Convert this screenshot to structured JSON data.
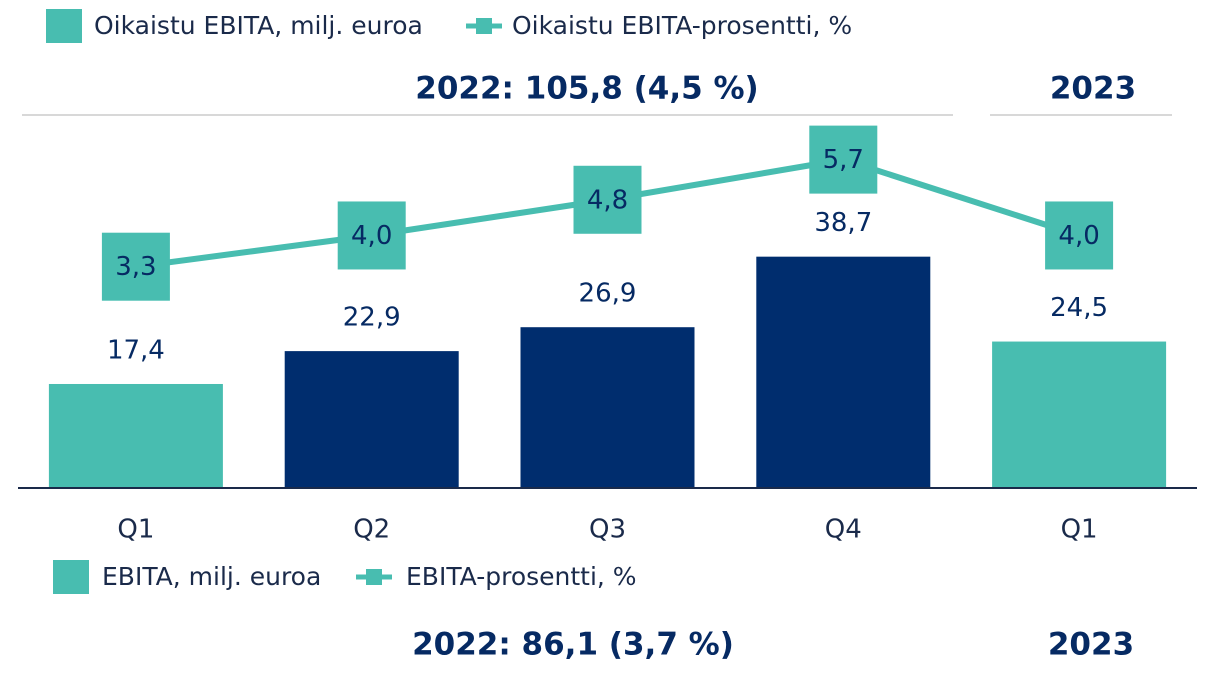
{
  "chart_data": {
    "type": "bar",
    "categories": [
      "Q1",
      "Q2",
      "Q3",
      "Q4",
      "Q1"
    ],
    "series": [
      {
        "name": "Oikaistu EBITA, milj. euroa",
        "type": "bar",
        "color": "#48bdb0",
        "colors": [
          "#48bdb0",
          "#002d6e",
          "#002d6e",
          "#002d6e",
          "#48bdb0"
        ],
        "values": [
          17.4,
          22.9,
          26.9,
          38.7,
          24.5
        ],
        "value_labels": [
          "17,4",
          "22,9",
          "26,9",
          "38,7",
          "24,5"
        ]
      },
      {
        "name": "Oikaistu EBITA-prosentti, %",
        "type": "line",
        "axis": "y2",
        "color": "#48bdb0",
        "values": [
          3.3,
          4.0,
          4.8,
          5.7,
          4.0
        ],
        "value_labels": [
          "3,3",
          "4,0",
          "4,8",
          "5,7",
          "4,0"
        ]
      }
    ],
    "period_labels": [
      "2022: 105,8 (4,5 %)",
      "2023"
    ],
    "secondary_legend": [
      "EBITA, milj. euroa",
      "EBITA-prosentti, %"
    ],
    "secondary_period_labels": [
      "2022: 86,1 (3,7 %)",
      "2023"
    ],
    "ylim": [
      0,
      62.4
    ],
    "y2lim": [
      -1.66,
      6.7
    ]
  }
}
